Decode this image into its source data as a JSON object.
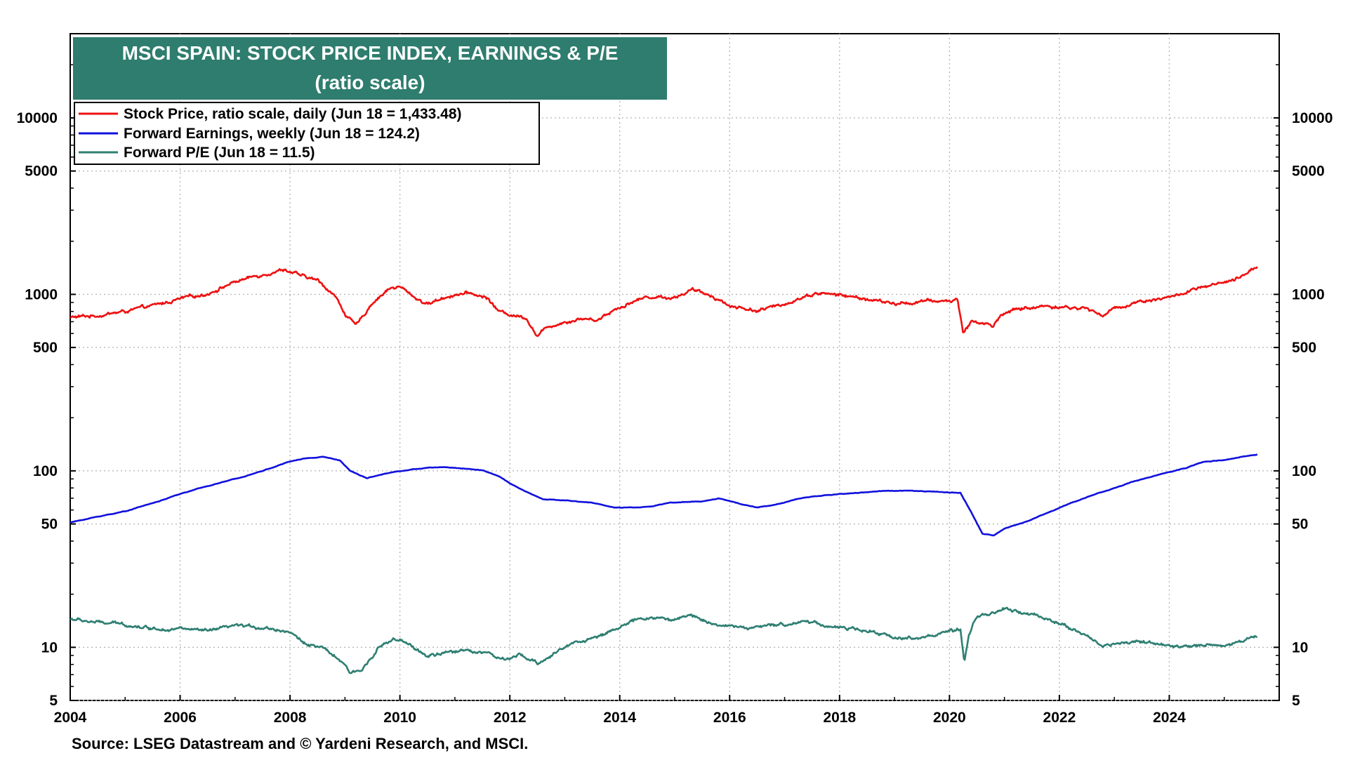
{
  "chart_data": {
    "type": "line",
    "title": "MSCI SPAIN: STOCK PRICE INDEX, EARNINGS & P/E",
    "subtitle": "(ratio scale)",
    "yscale": "log",
    "ylim": [
      5,
      30000
    ],
    "xlim": [
      2004,
      2026
    ],
    "y_ticks": [
      5,
      10,
      50,
      100,
      500,
      1000,
      5000,
      10000
    ],
    "y_tick_labels": [
      "5",
      "10",
      "50",
      "100",
      "500",
      "1000",
      "5000",
      "10000"
    ],
    "x_ticks": [
      2004,
      2006,
      2008,
      2010,
      2012,
      2014,
      2016,
      2018,
      2020,
      2022,
      2024
    ],
    "x_tick_labels": [
      "2004",
      "2006",
      "2008",
      "2010",
      "2012",
      "2014",
      "2016",
      "2018",
      "2020",
      "2022",
      "2024"
    ],
    "grid": true,
    "legend_position": "top-left",
    "source": "Source: LSEG Datastream and © Yardeni Research, and MSCI.",
    "series": [
      {
        "name": "Stock Price, ratio scale, daily (Jun 18 = 1,433.48)",
        "color": "#ee1111",
        "noise": 0.025,
        "points": [
          [
            2004.0,
            740
          ],
          [
            2004.5,
            760
          ],
          [
            2005.0,
            800
          ],
          [
            2005.5,
            860
          ],
          [
            2006.0,
            940
          ],
          [
            2006.5,
            1010
          ],
          [
            2007.0,
            1180
          ],
          [
            2007.5,
            1300
          ],
          [
            2007.9,
            1390
          ],
          [
            2008.2,
            1270
          ],
          [
            2008.5,
            1200
          ],
          [
            2008.8,
            1000
          ],
          [
            2009.0,
            780
          ],
          [
            2009.2,
            660
          ],
          [
            2009.5,
            900
          ],
          [
            2009.8,
            1080
          ],
          [
            2010.0,
            1100
          ],
          [
            2010.3,
            950
          ],
          [
            2010.5,
            880
          ],
          [
            2010.8,
            960
          ],
          [
            2011.0,
            1000
          ],
          [
            2011.3,
            1010
          ],
          [
            2011.6,
            950
          ],
          [
            2011.8,
            800
          ],
          [
            2012.0,
            770
          ],
          [
            2012.3,
            740
          ],
          [
            2012.5,
            580
          ],
          [
            2012.7,
            660
          ],
          [
            2013.0,
            700
          ],
          [
            2013.3,
            730
          ],
          [
            2013.6,
            720
          ],
          [
            2013.9,
            820
          ],
          [
            2014.2,
            900
          ],
          [
            2014.5,
            970
          ],
          [
            2015.0,
            960
          ],
          [
            2015.3,
            1060
          ],
          [
            2015.7,
            980
          ],
          [
            2016.0,
            860
          ],
          [
            2016.5,
            810
          ],
          [
            2016.9,
            860
          ],
          [
            2017.3,
            960
          ],
          [
            2017.6,
            1020
          ],
          [
            2018.0,
            990
          ],
          [
            2018.5,
            940
          ],
          [
            2019.0,
            880
          ],
          [
            2019.5,
            910
          ],
          [
            2020.0,
            920
          ],
          [
            2020.15,
            930
          ],
          [
            2020.25,
            610
          ],
          [
            2020.4,
            700
          ],
          [
            2020.6,
            690
          ],
          [
            2020.8,
            660
          ],
          [
            2020.95,
            780
          ],
          [
            2021.3,
            830
          ],
          [
            2021.8,
            860
          ],
          [
            2022.2,
            840
          ],
          [
            2022.5,
            830
          ],
          [
            2022.8,
            760
          ],
          [
            2023.0,
            830
          ],
          [
            2023.5,
            920
          ],
          [
            2024.0,
            960
          ],
          [
            2024.5,
            1070
          ],
          [
            2025.0,
            1160
          ],
          [
            2025.3,
            1230
          ],
          [
            2025.5,
            1400
          ],
          [
            2025.6,
            1433.48
          ]
        ]
      },
      {
        "name": "Forward Earnings, weekly (Jun 18 = 124.2)",
        "color": "#1111dd",
        "noise": 0.004,
        "points": [
          [
            2004.0,
            51
          ],
          [
            2004.5,
            55
          ],
          [
            2005.0,
            59
          ],
          [
            2005.3,
            63
          ],
          [
            2005.6,
            67
          ],
          [
            2006.0,
            74
          ],
          [
            2006.5,
            82
          ],
          [
            2007.0,
            90
          ],
          [
            2007.5,
            100
          ],
          [
            2008.0,
            113
          ],
          [
            2008.3,
            118
          ],
          [
            2008.6,
            120
          ],
          [
            2008.9,
            115
          ],
          [
            2009.1,
            100
          ],
          [
            2009.4,
            91
          ],
          [
            2009.7,
            96
          ],
          [
            2010.0,
            100
          ],
          [
            2010.5,
            104
          ],
          [
            2010.8,
            105
          ],
          [
            2011.0,
            104
          ],
          [
            2011.5,
            101
          ],
          [
            2011.8,
            93
          ],
          [
            2012.0,
            85
          ],
          [
            2012.3,
            76
          ],
          [
            2012.6,
            69
          ],
          [
            2013.0,
            68
          ],
          [
            2013.5,
            66
          ],
          [
            2013.9,
            62
          ],
          [
            2014.3,
            62
          ],
          [
            2014.6,
            63
          ],
          [
            2014.9,
            66
          ],
          [
            2015.5,
            67
          ],
          [
            2015.8,
            70
          ],
          [
            2016.2,
            65
          ],
          [
            2016.5,
            62
          ],
          [
            2016.8,
            64
          ],
          [
            2017.3,
            70
          ],
          [
            2017.8,
            73
          ],
          [
            2018.3,
            75
          ],
          [
            2018.8,
            77
          ],
          [
            2019.3,
            77
          ],
          [
            2019.8,
            76
          ],
          [
            2020.2,
            75
          ],
          [
            2020.4,
            58
          ],
          [
            2020.6,
            44
          ],
          [
            2020.8,
            43
          ],
          [
            2021.0,
            47
          ],
          [
            2021.5,
            53
          ],
          [
            2022.0,
            62
          ],
          [
            2022.5,
            71
          ],
          [
            2022.9,
            78
          ],
          [
            2023.3,
            86
          ],
          [
            2023.8,
            95
          ],
          [
            2024.3,
            104
          ],
          [
            2024.6,
            112
          ],
          [
            2025.0,
            115
          ],
          [
            2025.6,
            124.2
          ]
        ]
      },
      {
        "name": "Forward P/E (Jun 18 = 11.5)",
        "color": "#2e7f72",
        "noise": 0.025,
        "points": [
          [
            2004.0,
            14.5
          ],
          [
            2004.5,
            13.8
          ],
          [
            2005.0,
            13.5
          ],
          [
            2005.5,
            12.8
          ],
          [
            2006.0,
            12.8
          ],
          [
            2006.5,
            12.3
          ],
          [
            2007.0,
            13.2
          ],
          [
            2007.5,
            13.0
          ],
          [
            2008.0,
            12.3
          ],
          [
            2008.2,
            10.8
          ],
          [
            2008.6,
            9.8
          ],
          [
            2008.9,
            8.5
          ],
          [
            2009.1,
            7.1
          ],
          [
            2009.3,
            7.4
          ],
          [
            2009.6,
            10.0
          ],
          [
            2009.9,
            11.1
          ],
          [
            2010.2,
            10.2
          ],
          [
            2010.5,
            8.9
          ],
          [
            2010.8,
            9.2
          ],
          [
            2011.2,
            9.7
          ],
          [
            2011.6,
            9.3
          ],
          [
            2011.9,
            8.4
          ],
          [
            2012.2,
            9.0
          ],
          [
            2012.5,
            8.1
          ],
          [
            2012.8,
            9.2
          ],
          [
            2013.2,
            10.8
          ],
          [
            2013.6,
            11.4
          ],
          [
            2014.0,
            13.2
          ],
          [
            2014.5,
            14.8
          ],
          [
            2015.0,
            14.3
          ],
          [
            2015.3,
            15.2
          ],
          [
            2015.7,
            13.7
          ],
          [
            2016.0,
            13.1
          ],
          [
            2016.5,
            12.9
          ],
          [
            2017.0,
            13.5
          ],
          [
            2017.4,
            14.2
          ],
          [
            2017.8,
            13.2
          ],
          [
            2018.3,
            12.6
          ],
          [
            2018.8,
            11.8
          ],
          [
            2019.2,
            11.2
          ],
          [
            2019.6,
            11.6
          ],
          [
            2020.0,
            12.2
          ],
          [
            2020.2,
            12.5
          ],
          [
            2020.27,
            8.0
          ],
          [
            2020.35,
            11.5
          ],
          [
            2020.5,
            15.2
          ],
          [
            2020.8,
            15.6
          ],
          [
            2021.0,
            16.5
          ],
          [
            2021.3,
            15.7
          ],
          [
            2021.8,
            14.6
          ],
          [
            2022.1,
            13.2
          ],
          [
            2022.4,
            12.0
          ],
          [
            2022.8,
            10.2
          ],
          [
            2023.0,
            10.4
          ],
          [
            2023.4,
            10.9
          ],
          [
            2023.8,
            10.4
          ],
          [
            2024.2,
            9.9
          ],
          [
            2024.6,
            10.4
          ],
          [
            2025.0,
            10.3
          ],
          [
            2025.3,
            10.7
          ],
          [
            2025.5,
            11.6
          ],
          [
            2025.6,
            11.5
          ]
        ]
      }
    ]
  },
  "colors": {
    "title_background": "#2e7d6e",
    "axis": "#000000",
    "grid": "#b8b8b8"
  }
}
